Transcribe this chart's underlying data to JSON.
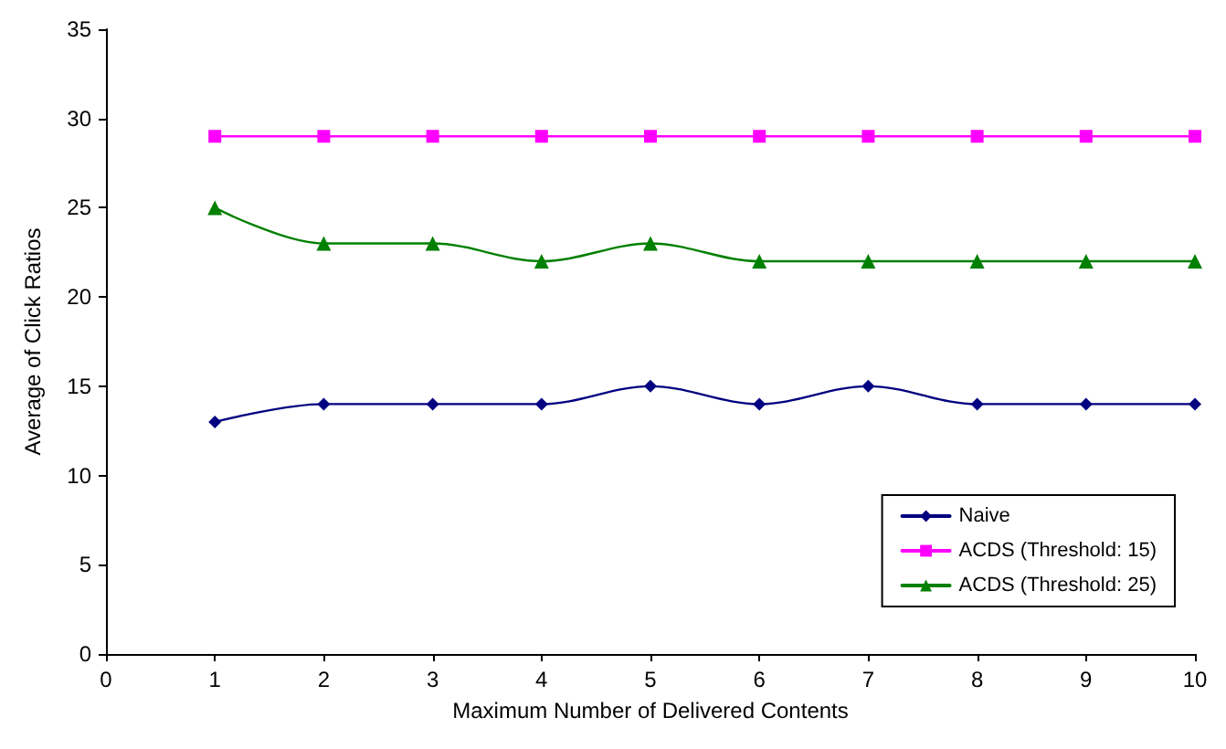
{
  "chart_data": {
    "type": "line",
    "xlabel": "Maximum Number of Delivered Contents",
    "ylabel": "Average of Click Ratios",
    "x": [
      1,
      2,
      3,
      4,
      5,
      6,
      7,
      8,
      9,
      10
    ],
    "series": [
      {
        "name": "Naive",
        "color": "#000080",
        "marker": "diamond",
        "values": [
          13,
          14,
          14,
          14,
          15,
          14,
          15,
          14,
          14,
          14
        ]
      },
      {
        "name": "ACDS (Threshold: 15)",
        "color": "#ff00ff",
        "marker": "square",
        "values": [
          29,
          29,
          29,
          29,
          29,
          29,
          29,
          29,
          29,
          29
        ]
      },
      {
        "name": "ACDS (Threshold: 25)",
        "color": "#008000",
        "marker": "triangle",
        "values": [
          25,
          23,
          23,
          22,
          23,
          22,
          22,
          22,
          22,
          22
        ]
      }
    ],
    "xlim": [
      0,
      10
    ],
    "xticks": [
      0,
      1,
      2,
      3,
      4,
      5,
      6,
      7,
      8,
      9,
      10
    ],
    "ylim": [
      0,
      35
    ],
    "yticks": [
      0,
      5,
      10,
      15,
      20,
      25,
      30,
      35
    ],
    "grid": false,
    "legend": "bottom right",
    "line_style": "solid"
  }
}
